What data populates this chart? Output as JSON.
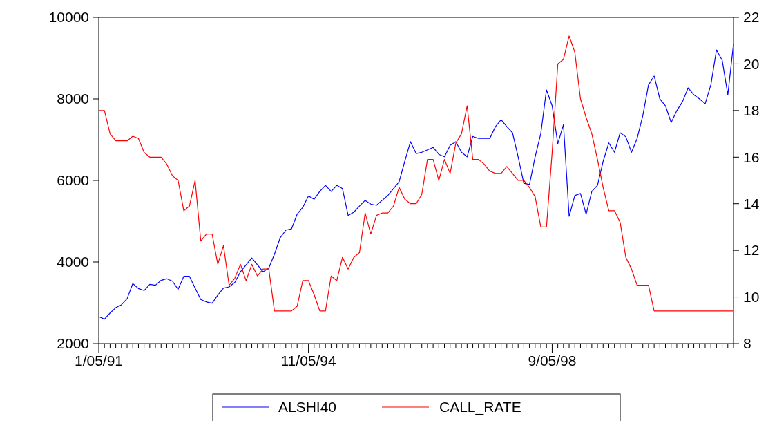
{
  "chart_data": {
    "type": "line",
    "categories": [
      "1/05/91",
      null,
      null,
      null,
      null,
      null,
      null,
      null,
      null,
      null,
      null,
      null,
      null,
      null,
      null,
      null,
      null,
      null,
      null,
      null,
      null,
      null,
      null,
      null,
      null,
      null,
      null,
      null,
      null,
      null,
      null,
      null,
      null,
      null,
      null,
      null,
      null,
      "11/05/94",
      null,
      null,
      null,
      null,
      null,
      null,
      null,
      null,
      null,
      null,
      null,
      null,
      null,
      null,
      null,
      null,
      null,
      null,
      null,
      null,
      null,
      null,
      null,
      null,
      null,
      null,
      null,
      null,
      null,
      null,
      null,
      null,
      null,
      null,
      null,
      null,
      null,
      null,
      null,
      null,
      null,
      null,
      "9/05/98",
      null,
      null,
      null,
      null,
      null,
      null,
      null,
      null,
      null,
      null,
      null,
      null,
      null,
      null,
      null,
      null,
      null,
      null,
      null,
      null,
      null,
      null,
      null,
      null,
      null,
      null,
      null,
      null,
      null,
      null,
      null,
      null
    ],
    "series": [
      {
        "name": "ALSHI40",
        "color": "#0000ff",
        "values": [
          2660,
          2600,
          2750,
          2880,
          2950,
          3100,
          3470,
          3350,
          3300,
          3450,
          3430,
          3550,
          3590,
          3530,
          3330,
          3650,
          3650,
          3360,
          3080,
          3020,
          2990,
          3190,
          3360,
          3390,
          3500,
          3760,
          3930,
          4100,
          3930,
          3760,
          3850,
          4190,
          4590,
          4780,
          4810,
          5170,
          5340,
          5620,
          5540,
          5730,
          5880,
          5730,
          5880,
          5800,
          5140,
          5220,
          5370,
          5510,
          5420,
          5390,
          5510,
          5630,
          5800,
          5970,
          6470,
          6950,
          6660,
          6690,
          6750,
          6810,
          6640,
          6580,
          6860,
          6950,
          6690,
          6580,
          7080,
          7030,
          7030,
          7030,
          7320,
          7490,
          7320,
          7170,
          6580,
          5930,
          5900,
          6580,
          7150,
          8220,
          7830,
          6900,
          7370,
          5120,
          5630,
          5680,
          5170,
          5730,
          5880,
          6470,
          6920,
          6690,
          7170,
          7070,
          6690,
          7030,
          7590,
          8340,
          8560,
          8000,
          7830,
          7420,
          7710,
          7930,
          8270,
          8100,
          8000,
          7880,
          8340,
          9200,
          8950,
          8100,
          9350
        ]
      },
      {
        "name": "CALL_RATE",
        "color": "#ff0000",
        "axis": "y2",
        "values": [
          18,
          18,
          17,
          16.7,
          16.7,
          16.7,
          16.9,
          16.8,
          16.2,
          16,
          16,
          16,
          15.7,
          15.2,
          15,
          13.7,
          13.9,
          15,
          12.4,
          12.7,
          12.7,
          11.4,
          12.2,
          10.5,
          10.8,
          11.4,
          10.7,
          11.4,
          10.9,
          11.2,
          11.2,
          9.4,
          9.4,
          9.4,
          9.4,
          9.6,
          10.7,
          10.7,
          10.1,
          9.4,
          9.4,
          10.9,
          10.7,
          11.7,
          11.2,
          11.7,
          11.9,
          13.6,
          12.7,
          13.5,
          13.6,
          13.6,
          13.9,
          14.7,
          14.2,
          14,
          14,
          14.4,
          15.9,
          15.9,
          15,
          15.9,
          15.3,
          16.6,
          17,
          18.2,
          15.9,
          15.9,
          15.7,
          15.4,
          15.3,
          15.3,
          15.6,
          15.3,
          15,
          15,
          14.7,
          14.3,
          13,
          13,
          16.2,
          20,
          20.2,
          21.2,
          20.5,
          18.5,
          17.7,
          17,
          15.9,
          14.7,
          13.7,
          13.7,
          13.2,
          11.7,
          11.2,
          10.5,
          10.5,
          10.5,
          9.4,
          9.4,
          9.4,
          9.4,
          9.4,
          9.4,
          9.4,
          9.4,
          9.4,
          9.4,
          9.4,
          9.4,
          9.4,
          9.4,
          9.4
        ]
      }
    ],
    "ylim": [
      2000,
      10000
    ],
    "yticks": [
      2000,
      4000,
      6000,
      8000,
      10000
    ],
    "y2lim": [
      8,
      22
    ],
    "y2ticks": [
      8,
      10,
      12,
      14,
      16,
      18,
      20,
      22
    ],
    "grid": false,
    "legend": "bottom"
  }
}
